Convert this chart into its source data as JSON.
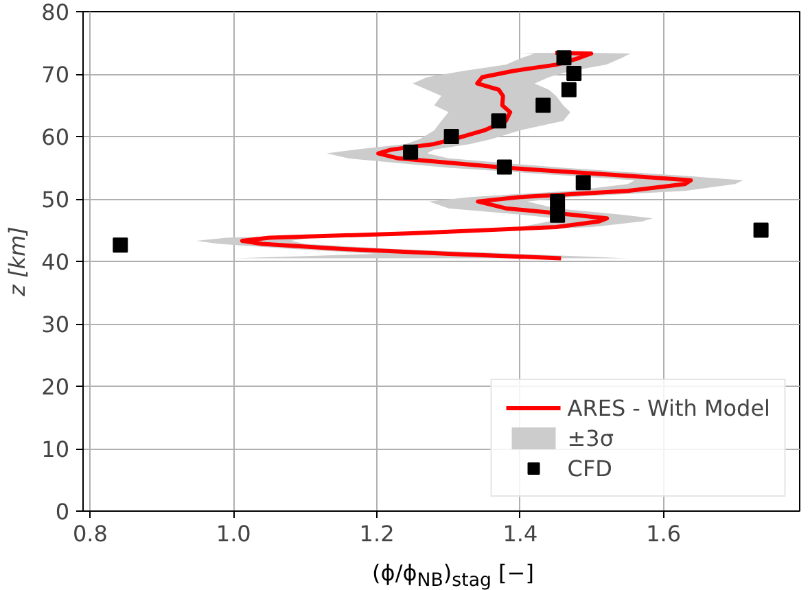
{
  "chart_data": {
    "type": "line",
    "xlabel": "(ϕ/ϕ$_{NB}$)$_{stag}$ [−]",
    "ylabel": "z [km]",
    "xlim": [
      0.79,
      1.79
    ],
    "xticks": [
      {
        "value": 0.8,
        "label": "0.8"
      },
      {
        "value": 1.0,
        "label": "1.0"
      },
      {
        "value": 1.2,
        "label": "1.2"
      },
      {
        "value": 1.4,
        "label": "1.4"
      },
      {
        "value": 1.6,
        "label": "1.6"
      }
    ],
    "ylim": [
      0,
      80
    ],
    "yticks": [
      0,
      10,
      20,
      30,
      40,
      50,
      60,
      70,
      80
    ],
    "grid": true,
    "legend": "bottom right",
    "series": [
      {
        "type": "area",
        "name": "±3σ",
        "color": "#cccccc",
        "x": [
          1.0,
          1.2,
          1.08,
          0.98,
          0.948,
          0.99,
          1.2,
          1.4,
          1.44,
          1.45,
          1.4,
          1.3,
          1.273,
          1.33,
          1.47,
          1.55,
          1.56,
          1.47,
          1.3,
          1.16,
          1.13,
          1.17,
          1.24,
          1.26,
          1.28,
          1.29,
          1.3,
          1.28,
          1.29,
          1.27,
          1.25,
          1.27,
          1.32,
          1.38,
          1.4,
          1.42,
          1.4,
          1.5,
          1.554,
          1.54,
          1.52,
          1.47,
          1.44,
          1.42,
          1.44,
          1.45,
          1.46,
          1.47,
          1.46,
          1.4,
          1.36,
          1.33,
          1.28,
          1.27,
          1.3,
          1.46,
          1.63,
          1.711,
          1.7,
          1.63,
          1.47,
          1.41,
          1.45,
          1.54,
          1.585,
          1.57,
          1.5,
          1.3,
          1.11,
          1.08,
          1.1,
          1.22,
          1.4,
          1.55
        ],
        "values": [
          40.5,
          41.2,
          42.0,
          42.8,
          43.3,
          43.8,
          44.5,
          45.5,
          46.4,
          46.9,
          47.5,
          48.5,
          49.6,
          50.3,
          51.3,
          52.4,
          53.0,
          53.7,
          55.0,
          56.5,
          57.3,
          57.9,
          58.8,
          59.6,
          61.0,
          62.5,
          63.9,
          65.0,
          66.5,
          67.5,
          68.5,
          69.5,
          70.5,
          71.5,
          72.5,
          73.3,
          73.4,
          73.4,
          73.3,
          72.5,
          71.5,
          70.5,
          69.5,
          68.5,
          67.5,
          66.5,
          65.0,
          63.9,
          62.5,
          61.0,
          59.6,
          58.8,
          57.9,
          57.3,
          56.5,
          55.0,
          53.7,
          53.0,
          52.4,
          51.3,
          50.3,
          49.6,
          48.5,
          47.5,
          46.9,
          46.4,
          45.5,
          44.5,
          43.8,
          43.3,
          42.8,
          42.0,
          41.2,
          40.5
        ]
      },
      {
        "name": "ARES - With Model",
        "color": "#ff0000",
        "line_style": "solid",
        "x": [
          1.457,
          1.3,
          1.15,
          1.04,
          1.012,
          1.05,
          1.25,
          1.45,
          1.51,
          1.521,
          1.47,
          1.38,
          1.341,
          1.4,
          1.55,
          1.63,
          1.638,
          1.55,
          1.38,
          1.23,
          1.202,
          1.22,
          1.28,
          1.308,
          1.35,
          1.38,
          1.386,
          1.375,
          1.376,
          1.37,
          1.34,
          1.347,
          1.39,
          1.45,
          1.48,
          1.499,
          1.449
        ],
        "values": [
          40.5,
          41.2,
          42.0,
          42.8,
          43.3,
          43.8,
          44.5,
          45.5,
          46.4,
          46.9,
          47.5,
          48.5,
          49.6,
          50.3,
          51.3,
          52.4,
          53.0,
          53.7,
          55.0,
          56.5,
          57.3,
          57.9,
          58.8,
          59.6,
          61.0,
          62.5,
          63.9,
          65.0,
          66.5,
          67.5,
          68.5,
          69.5,
          70.5,
          71.5,
          72.5,
          73.3,
          73.4
        ]
      },
      {
        "type": "scatter",
        "name": "CFD",
        "color": "#000000",
        "marker": "square",
        "x": [
          0.842,
          1.736,
          1.452,
          1.452,
          1.488,
          1.378,
          1.247,
          1.304,
          1.37,
          1.432,
          1.468,
          1.475,
          1.461
        ],
        "values": [
          42.6,
          45.0,
          47.4,
          49.6,
          52.6,
          55.1,
          57.5,
          60.0,
          62.5,
          65.0,
          67.5,
          70.1,
          72.6
        ]
      }
    ]
  }
}
